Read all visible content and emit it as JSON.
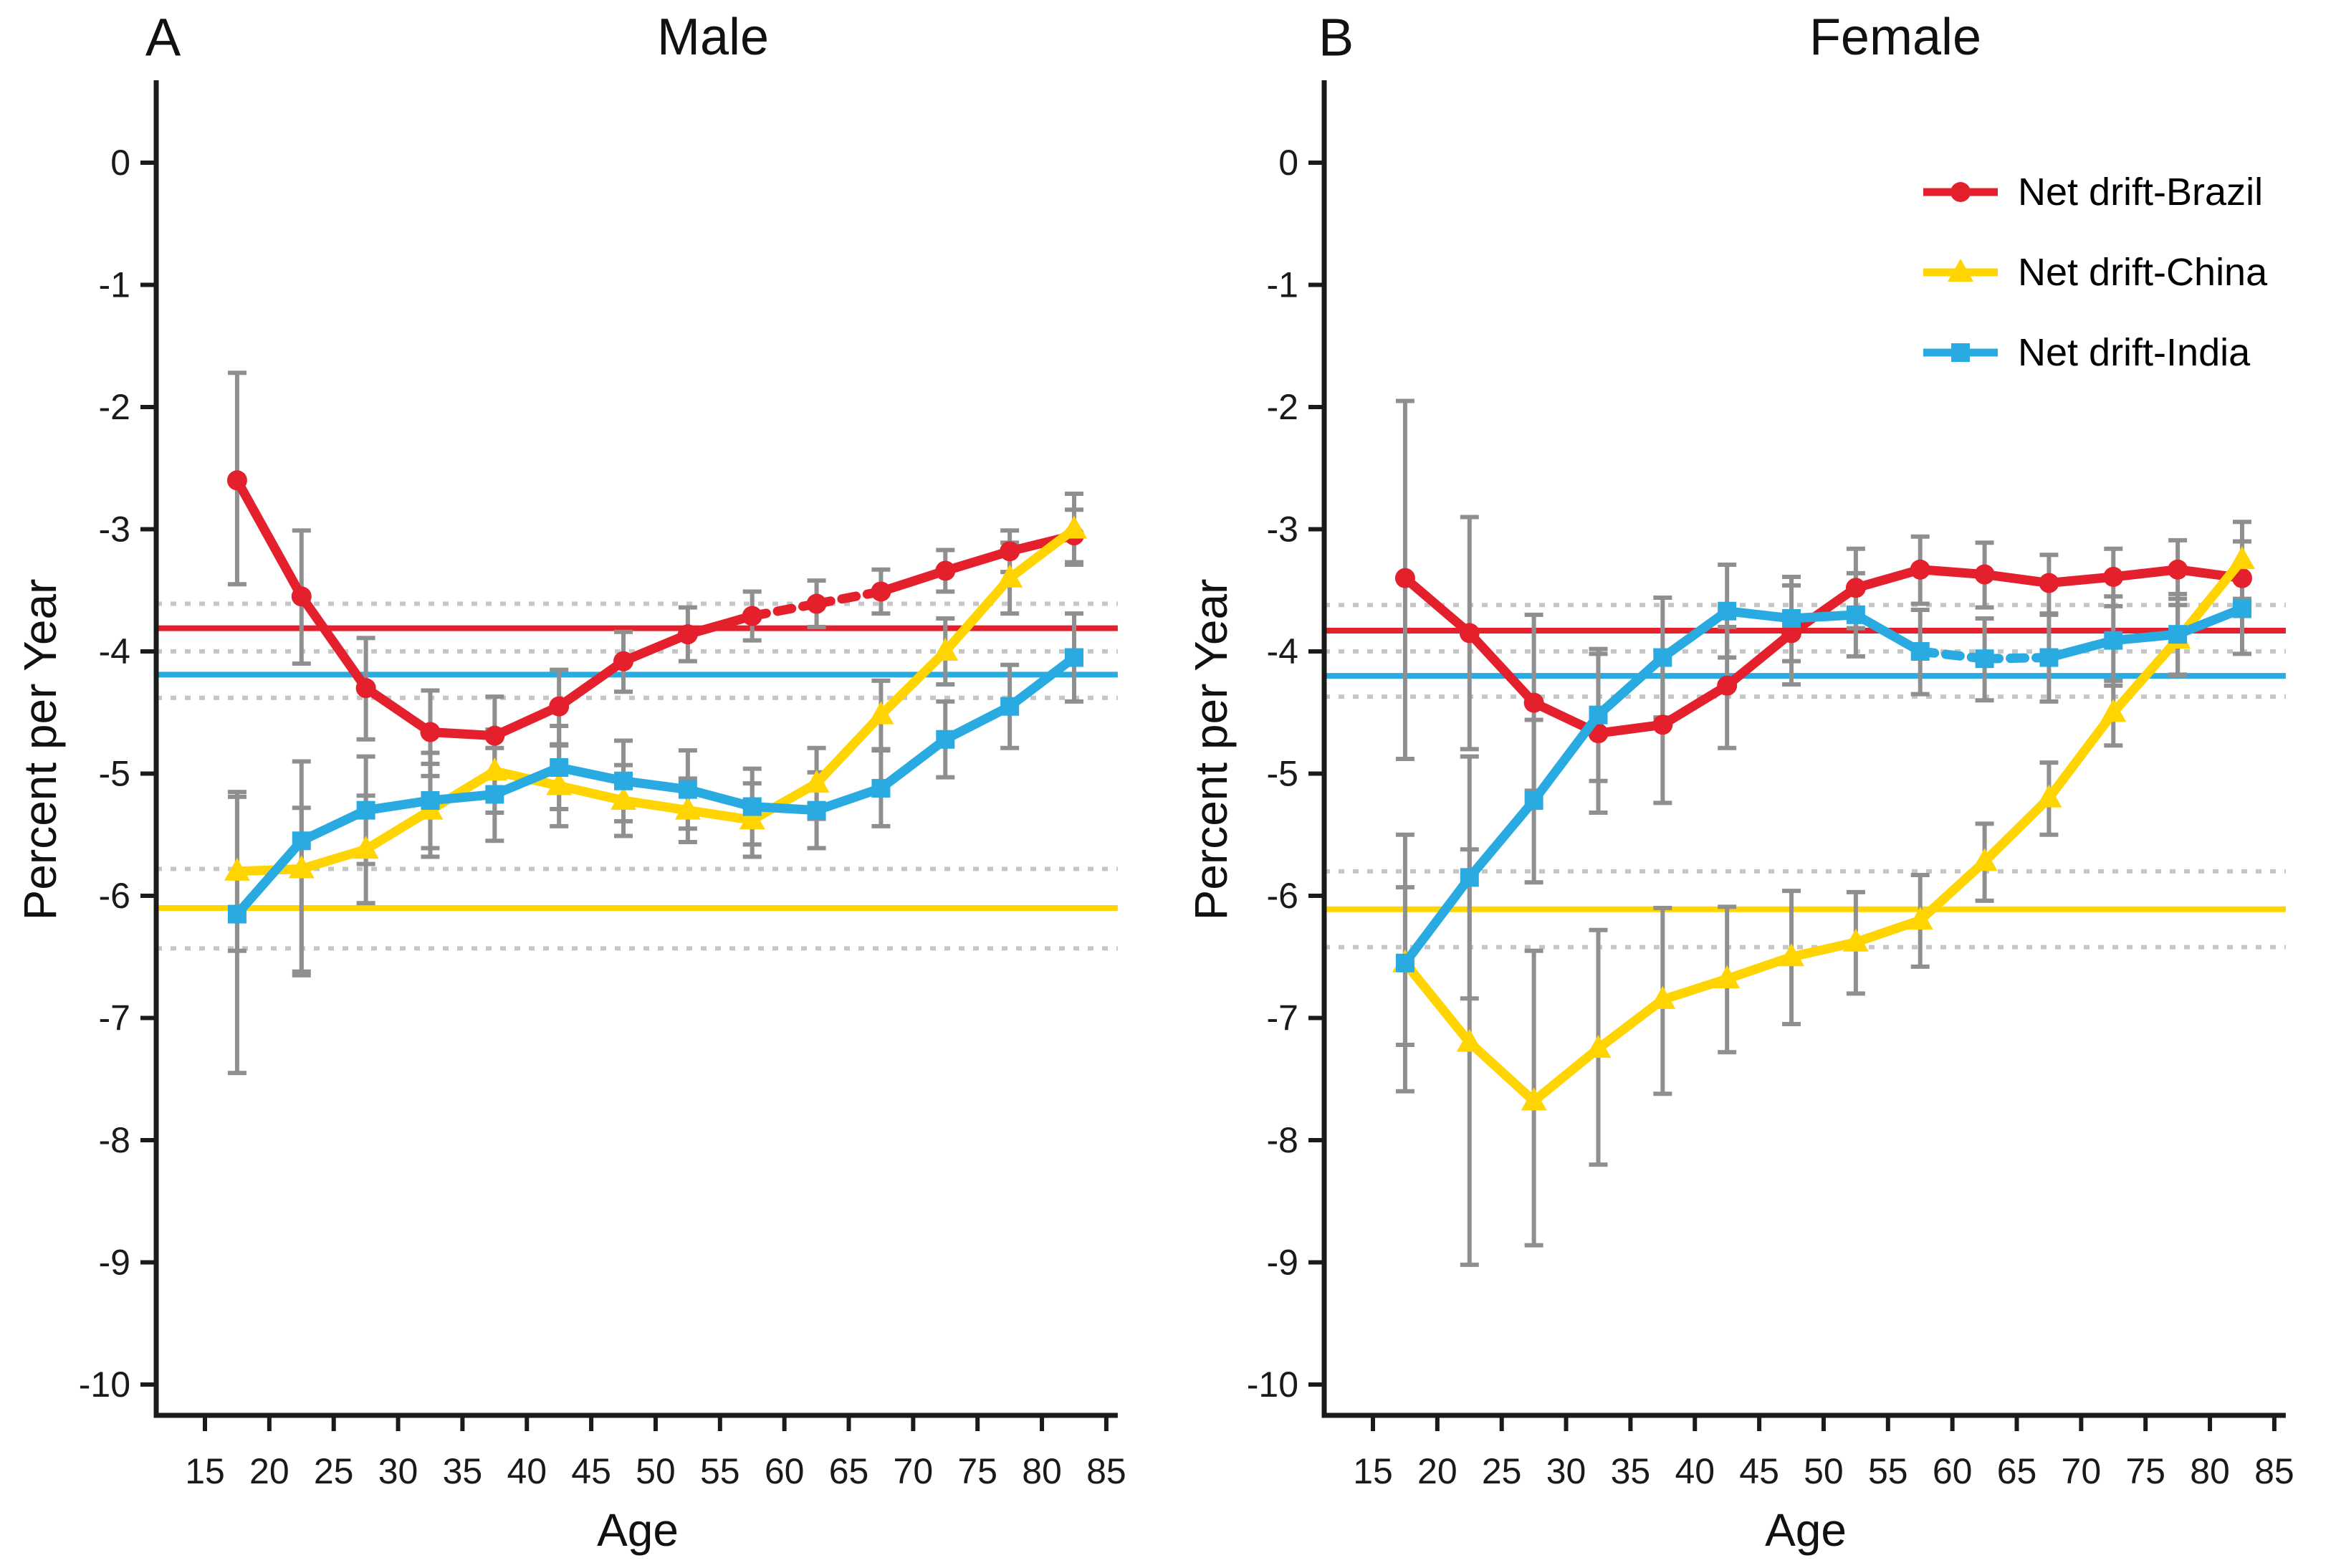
{
  "chart_data": {
    "type": "line",
    "description": "Net drift (percent per year) of incidence by age group, with 95% CI error bars and overall net-drift reference lines (solid) with dotted CI bands, for Brazil, China and India.",
    "x_axis_label": "Age",
    "y_axis_label": "Percent per Year",
    "x_ticks": [
      15,
      20,
      25,
      30,
      35,
      40,
      45,
      50,
      55,
      60,
      65,
      70,
      75,
      80,
      85
    ],
    "y_ticks": [
      0,
      -1,
      -2,
      -3,
      -4,
      -5,
      -6,
      -7,
      -8,
      -9,
      -10
    ],
    "ages": [
      17.5,
      22.5,
      27.5,
      32.5,
      37.5,
      42.5,
      47.5,
      52.5,
      57.5,
      62.5,
      67.5,
      72.5,
      77.5,
      82.5
    ],
    "colors": {
      "brazil": "#e4202c",
      "china": "#ffd401",
      "india": "#29abe2",
      "error_bar": "#8f8f8f",
      "ci_guide": "#c6c6c6",
      "axis": "#1a1a1a"
    },
    "legend": {
      "items": [
        {
          "label": "Net drift-Brazil",
          "color": "#e4202c",
          "marker": "circle"
        },
        {
          "label": "Net drift-China",
          "color": "#ffd401",
          "marker": "triangle"
        },
        {
          "label": "Net drift-India",
          "color": "#29abe2",
          "marker": "square"
        }
      ]
    },
    "panels": [
      {
        "id": "a",
        "tag": "A",
        "title": "Male",
        "x_label": "Age",
        "y_label": "Percent per Year",
        "dotted_guides": [
          -3.61,
          -4.0,
          -4.38,
          -5.78,
          -6.43
        ],
        "series": [
          {
            "name": "Net drift-Brazil",
            "key": "brazil",
            "color": "#e4202c",
            "marker": "circle",
            "net_drift": {
              "value": -3.81,
              "ci": [
                -3.61,
                -4.0
              ]
            },
            "values": [
              -2.6,
              -3.55,
              -4.3,
              -4.66,
              -4.69,
              -4.45,
              -4.08,
              -3.86,
              -3.71,
              -3.61,
              -3.51,
              -3.34,
              -3.18,
              -3.05
            ],
            "ci_upper": [
              -1.72,
              -3.01,
              -3.89,
              -4.32,
              -4.37,
              -4.15,
              -3.84,
              -3.64,
              -3.51,
              -3.42,
              -3.33,
              -3.17,
              -3.01,
              -2.84
            ],
            "ci_lower": [
              -3.45,
              -4.1,
              -4.72,
              -5.02,
              -5.02,
              -4.76,
              -4.33,
              -4.08,
              -3.91,
              -3.8,
              -3.69,
              -3.51,
              -3.35,
              -3.27
            ],
            "dashed_age_ranges": [
              [
                57.5,
                67.5
              ]
            ]
          },
          {
            "name": "Net drift-China",
            "key": "china",
            "color": "#ffd401",
            "marker": "triangle",
            "net_drift": {
              "value": -6.1,
              "ci": [
                -5.78,
                -6.43
              ]
            },
            "values": [
              -5.8,
              -5.78,
              -5.62,
              -5.3,
              -4.98,
              -5.1,
              -5.22,
              -5.3,
              -5.38,
              -5.08,
              -4.52,
              -4.0,
              -3.4,
              -3.0
            ],
            "ci_upper": [
              -5.15,
              -5.28,
              -5.18,
              -4.92,
              -4.64,
              -4.77,
              -4.93,
              -5.04,
              -5.08,
              -4.79,
              -4.24,
              -3.73,
              -3.11,
              -2.71
            ],
            "ci_lower": [
              -6.45,
              -6.62,
              -6.06,
              -5.68,
              -5.32,
              -5.43,
              -5.51,
              -5.56,
              -5.68,
              -5.37,
              -4.8,
              -4.27,
              -3.69,
              -3.29
            ],
            "dashed_age_ranges": []
          },
          {
            "name": "Net drift-India",
            "key": "india",
            "color": "#29abe2",
            "marker": "square",
            "net_drift": {
              "value": -4.19,
              "ci": [
                -4.0,
                -4.38
              ]
            },
            "values": [
              -6.15,
              -5.55,
              -5.3,
              -5.22,
              -5.17,
              -4.95,
              -5.06,
              -5.13,
              -5.27,
              -5.3,
              -5.12,
              -4.72,
              -4.45,
              -4.05
            ],
            "ci_upper": [
              -5.19,
              -4.9,
              -4.86,
              -4.83,
              -4.79,
              -4.61,
              -4.73,
              -4.81,
              -4.96,
              -4.99,
              -4.81,
              -4.41,
              -4.11,
              -3.69
            ],
            "ci_lower": [
              -7.45,
              -6.65,
              -5.74,
              -5.61,
              -5.55,
              -5.29,
              -5.39,
              -5.45,
              -5.58,
              -5.61,
              -5.43,
              -5.03,
              -4.79,
              -4.41
            ],
            "dashed_age_ranges": []
          }
        ]
      },
      {
        "id": "b",
        "tag": "B",
        "title": "Female",
        "x_label": "Age",
        "y_label": "Percent per Year",
        "dotted_guides": [
          -3.62,
          -4.0,
          -4.37,
          -5.8,
          -6.42
        ],
        "series": [
          {
            "name": "Net drift-Brazil",
            "key": "brazil",
            "color": "#e4202c",
            "marker": "circle",
            "net_drift": {
              "value": -3.83,
              "ci": [
                -3.62,
                -4.0
              ]
            },
            "values": [
              -3.4,
              -3.85,
              -4.42,
              -4.67,
              -4.6,
              -4.28,
              -3.85,
              -3.48,
              -3.33,
              -3.37,
              -3.44,
              -3.39,
              -3.33,
              -3.4
            ],
            "ci_upper": [
              -1.95,
              -2.9,
              -3.7,
              -4.02,
              -4.0,
              -3.8,
              -3.46,
              -3.16,
              -3.06,
              -3.11,
              -3.21,
              -3.16,
              -3.09,
              -3.1
            ],
            "ci_lower": [
              -4.88,
              -4.8,
              -5.14,
              -5.32,
              -5.24,
              -4.79,
              -4.27,
              -3.81,
              -3.61,
              -3.64,
              -3.69,
              -3.63,
              -3.57,
              -3.71
            ],
            "dashed_age_ranges": []
          },
          {
            "name": "Net drift-China",
            "key": "china",
            "color": "#ffd401",
            "marker": "triangle",
            "net_drift": {
              "value": -6.11,
              "ci": [
                -5.8,
                -6.42
              ]
            },
            "values": [
              -6.55,
              -7.2,
              -7.68,
              -7.25,
              -6.85,
              -6.68,
              -6.5,
              -6.38,
              -6.2,
              -5.72,
              -5.2,
              -4.5,
              -3.9,
              -3.25
            ],
            "ci_upper": [
              -5.93,
              -5.62,
              -6.45,
              -6.28,
              -6.1,
              -6.09,
              -5.96,
              -5.97,
              -5.83,
              -5.41,
              -4.91,
              -4.24,
              -3.62,
              -2.94
            ],
            "ci_lower": [
              -7.22,
              -9.02,
              -8.86,
              -8.2,
              -7.62,
              -7.28,
              -7.05,
              -6.8,
              -6.58,
              -6.04,
              -5.5,
              -4.77,
              -4.19,
              -3.57
            ],
            "dashed_age_ranges": []
          },
          {
            "name": "Net drift-India",
            "key": "india",
            "color": "#29abe2",
            "marker": "square",
            "net_drift": {
              "value": -4.2,
              "ci": [
                -4.0,
                -4.37
              ]
            },
            "values": [
              -6.55,
              -5.85,
              -5.22,
              -4.52,
              -4.05,
              -3.67,
              -3.73,
              -3.7,
              -4.0,
              -4.06,
              -4.05,
              -3.91,
              -3.86,
              -3.65
            ],
            "ci_upper": [
              -5.5,
              -4.86,
              -4.56,
              -3.98,
              -3.56,
              -3.29,
              -3.39,
              -3.36,
              -3.66,
              -3.73,
              -3.7,
              -3.55,
              -3.53,
              -3.29
            ],
            "ci_lower": [
              -7.6,
              -6.84,
              -5.89,
              -5.06,
              -4.54,
              -4.05,
              -4.08,
              -4.04,
              -4.35,
              -4.4,
              -4.41,
              -4.28,
              -4.2,
              -4.02
            ],
            "dashed_age_ranges": [
              [
                57.5,
                67.5
              ]
            ]
          }
        ]
      }
    ]
  }
}
